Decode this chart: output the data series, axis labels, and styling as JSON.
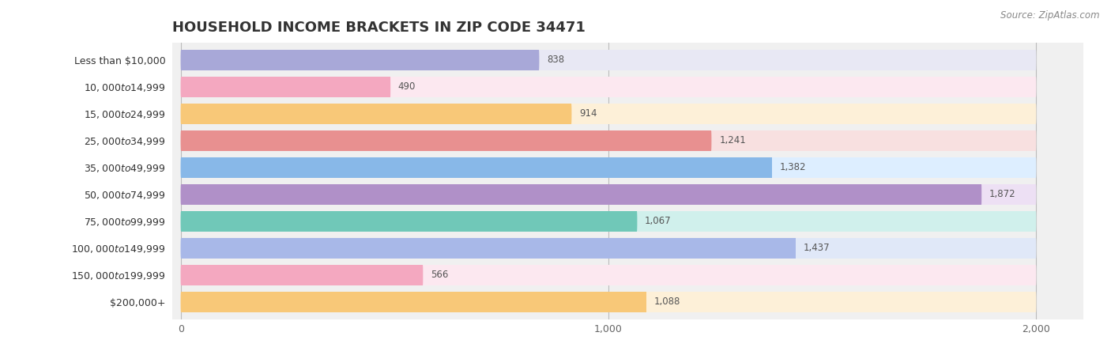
{
  "title": "HOUSEHOLD INCOME BRACKETS IN ZIP CODE 34471",
  "source": "Source: ZipAtlas.com",
  "categories": [
    "Less than $10,000",
    "$10,000 to $14,999",
    "$15,000 to $24,999",
    "$25,000 to $34,999",
    "$35,000 to $49,999",
    "$50,000 to $74,999",
    "$75,000 to $99,999",
    "$100,000 to $149,999",
    "$150,000 to $199,999",
    "$200,000+"
  ],
  "values": [
    838,
    490,
    914,
    1241,
    1382,
    1872,
    1067,
    1437,
    566,
    1088
  ],
  "bar_colors": [
    "#a8a8d8",
    "#f4a8c0",
    "#f8c878",
    "#e89090",
    "#88b8e8",
    "#b090c8",
    "#70c8b8",
    "#a8b8e8",
    "#f4a8c0",
    "#f8c878"
  ],
  "bar_bg_colors": [
    "#e8e8f4",
    "#fce8f0",
    "#fdf0d8",
    "#f8e0e0",
    "#ddeeff",
    "#ede0f4",
    "#d0f0ec",
    "#e0e8f8",
    "#fce8f0",
    "#fdf0d8"
  ],
  "xlim": [
    0,
    2000
  ],
  "xticks": [
    0,
    1000,
    2000
  ],
  "bar_height": 0.75,
  "title_fontsize": 13,
  "label_fontsize": 9,
  "value_fontsize": 8.5,
  "source_fontsize": 8.5
}
